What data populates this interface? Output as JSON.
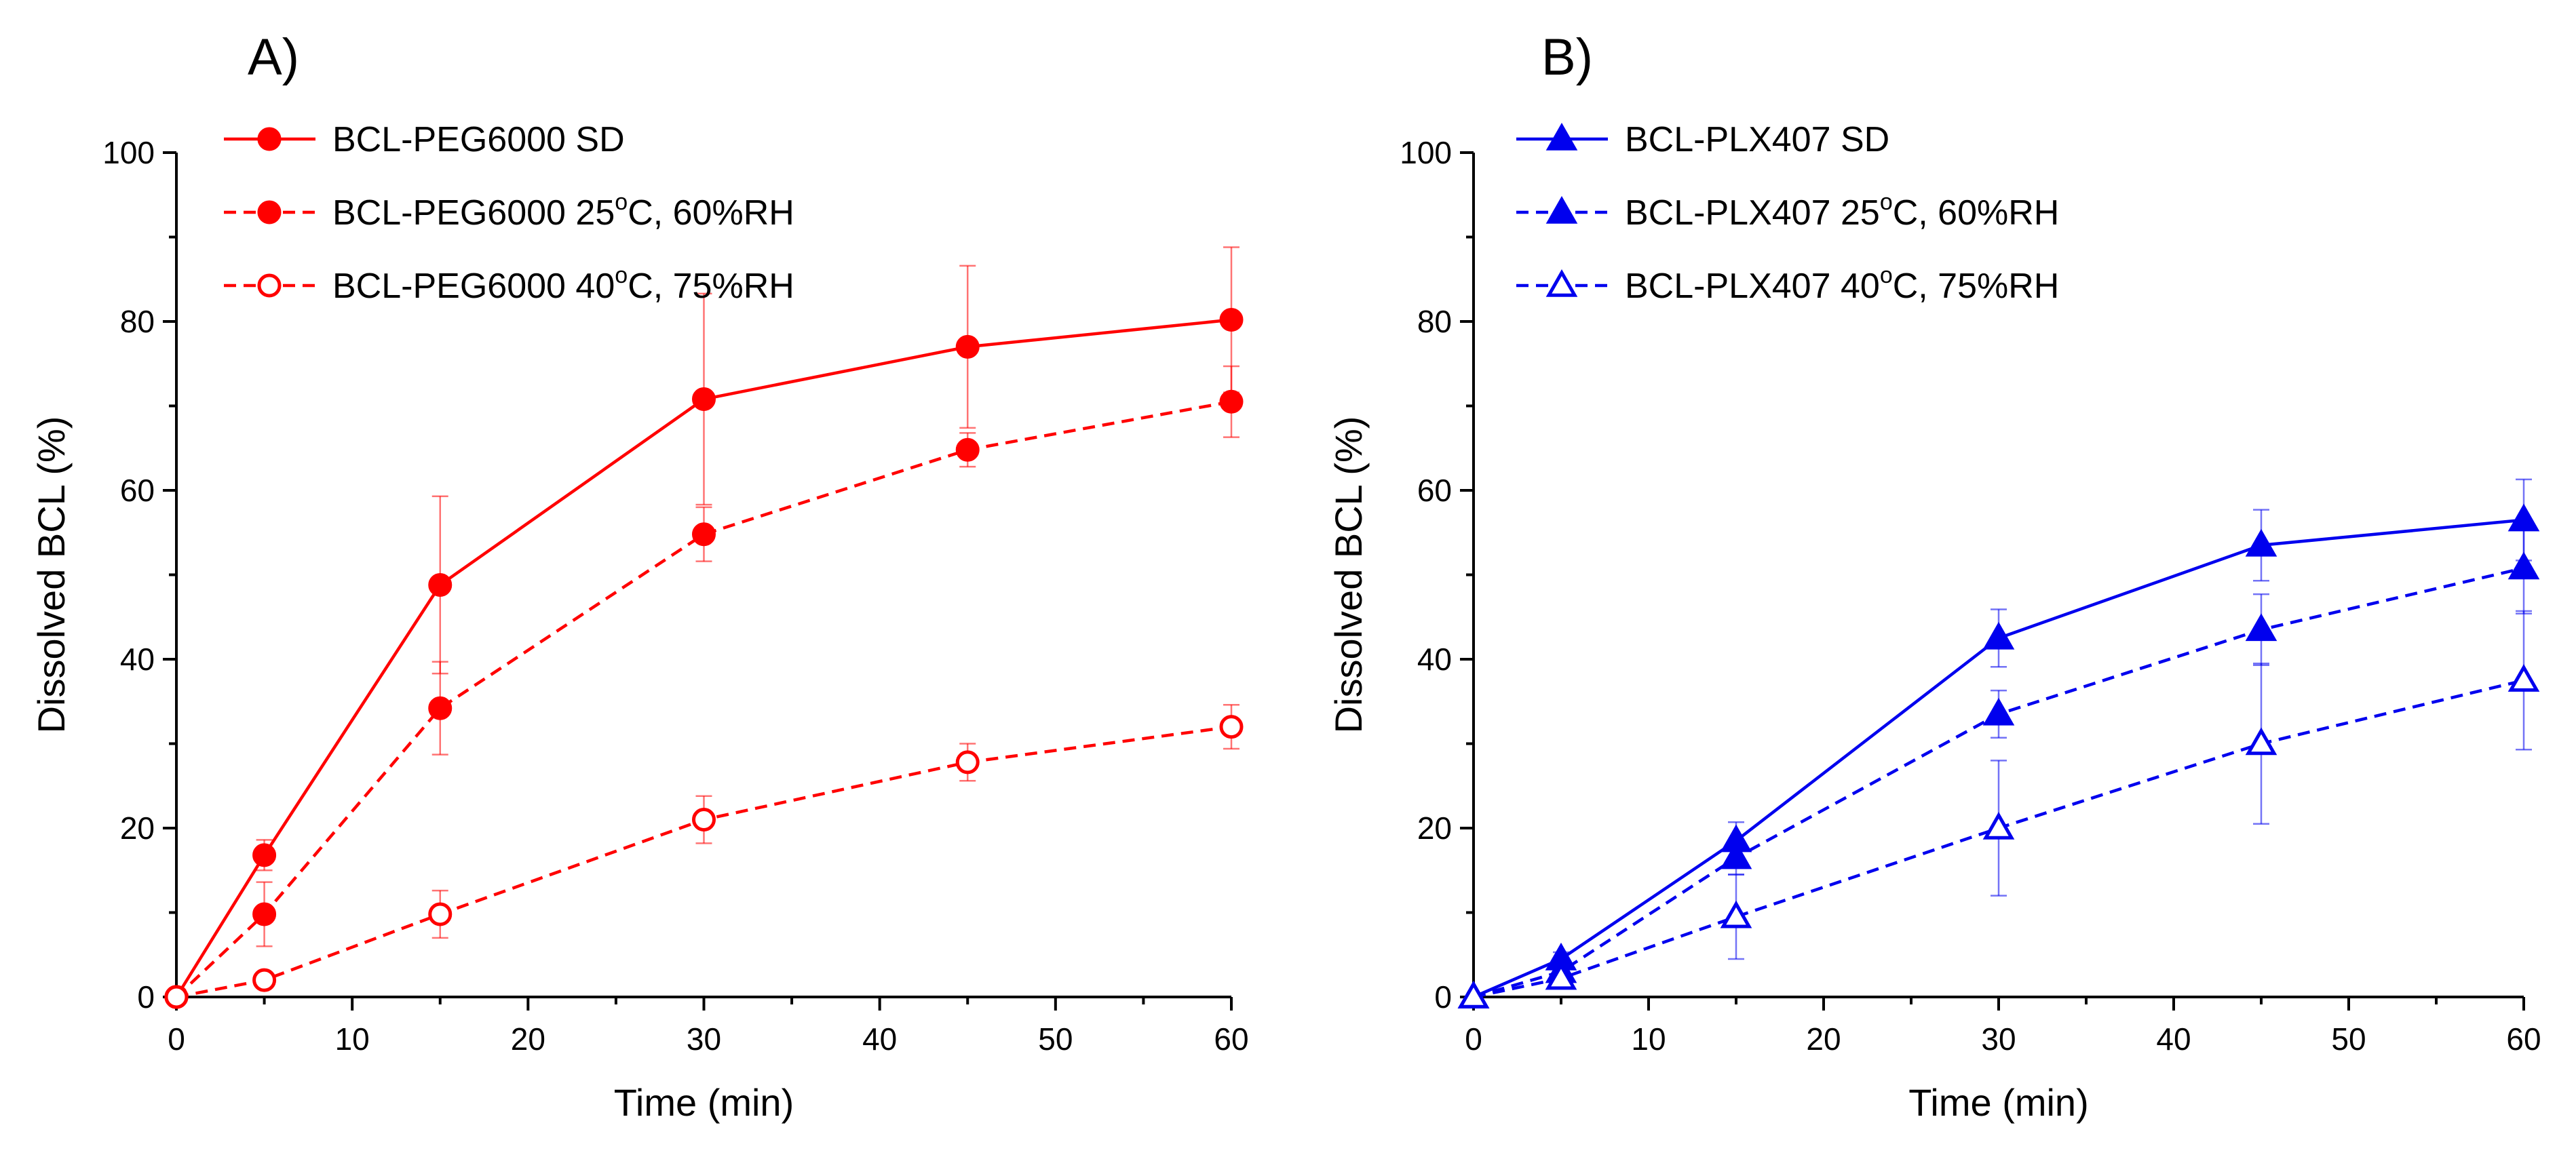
{
  "chart_data": [
    {
      "type": "line",
      "panel_label": "A)",
      "xlabel": "Time (min)",
      "ylabel": "Dissolved BCL (%)",
      "xlim": [
        0,
        60
      ],
      "ylim": [
        0,
        100
      ],
      "xticks": [
        0,
        10,
        20,
        30,
        40,
        50,
        60
      ],
      "yticks": [
        0,
        20,
        40,
        60,
        80,
        100
      ],
      "grid": false,
      "legend_position": "top-left",
      "color": "#ff0000",
      "x": [
        0,
        5,
        15,
        30,
        45,
        60
      ],
      "series": [
        {
          "name": "BCL-PEG6000 SD",
          "name_sup": "",
          "name_after": "",
          "values": [
            0,
            16.8,
            48.8,
            70.8,
            77.0,
            80.2
          ],
          "errors": [
            0,
            1.8,
            10.5,
            12.5,
            9.6,
            8.6
          ],
          "line_style": "solid",
          "marker": "circle",
          "filled": true
        },
        {
          "name": "BCL-PEG6000 25",
          "name_sup": "o",
          "name_after": "C, 60%RH",
          "values": [
            0,
            9.8,
            34.2,
            54.8,
            64.8,
            70.5
          ],
          "errors": [
            0,
            3.8,
            5.5,
            3.2,
            2.0,
            4.2
          ],
          "line_style": "dashed",
          "marker": "circle",
          "filled": true
        },
        {
          "name": "BCL-PEG6000 40",
          "name_sup": "o",
          "name_after": "C, 75%RH",
          "values": [
            0,
            2.0,
            9.8,
            21.0,
            27.8,
            32.0
          ],
          "errors": [
            0,
            0.5,
            2.8,
            2.8,
            2.2,
            2.6
          ],
          "line_style": "dashed",
          "marker": "circle",
          "filled": false
        }
      ]
    },
    {
      "type": "line",
      "panel_label": "B)",
      "xlabel": "Time (min)",
      "ylabel": "Dissolved BCL (%)",
      "xlim": [
        0,
        60
      ],
      "ylim": [
        0,
        100
      ],
      "xticks": [
        0,
        10,
        20,
        30,
        40,
        50,
        60
      ],
      "yticks": [
        0,
        20,
        40,
        60,
        80,
        100
      ],
      "grid": false,
      "legend_position": "top-left",
      "color": "#0000ee",
      "x": [
        0,
        5,
        15,
        30,
        45,
        60
      ],
      "series": [
        {
          "name": "BCL-PLX407 SD",
          "name_sup": "",
          "name_after": "",
          "values": [
            0,
            4.5,
            18.5,
            42.5,
            53.5,
            56.5
          ],
          "errors": [
            0,
            0.8,
            2.2,
            3.4,
            4.2,
            4.8
          ],
          "line_style": "solid",
          "marker": "triangle",
          "filled": true
        },
        {
          "name": "BCL-PLX407 25",
          "name_sup": "o",
          "name_after": "C, 60%RH",
          "values": [
            0,
            3.0,
            16.5,
            33.5,
            43.5,
            50.8
          ],
          "errors": [
            0,
            0.8,
            2.0,
            2.8,
            4.2,
            5.4
          ],
          "line_style": "dashed",
          "marker": "triangle",
          "filled": true
        },
        {
          "name": "BCL-PLX407 40",
          "name_sup": "o",
          "name_after": "C, 75%RH",
          "values": [
            0,
            2.2,
            9.5,
            20.0,
            30.0,
            37.5
          ],
          "errors": [
            0,
            0.8,
            5.0,
            8.0,
            9.5,
            8.2
          ],
          "line_style": "dashed",
          "marker": "triangle",
          "filled": false
        }
      ]
    }
  ]
}
